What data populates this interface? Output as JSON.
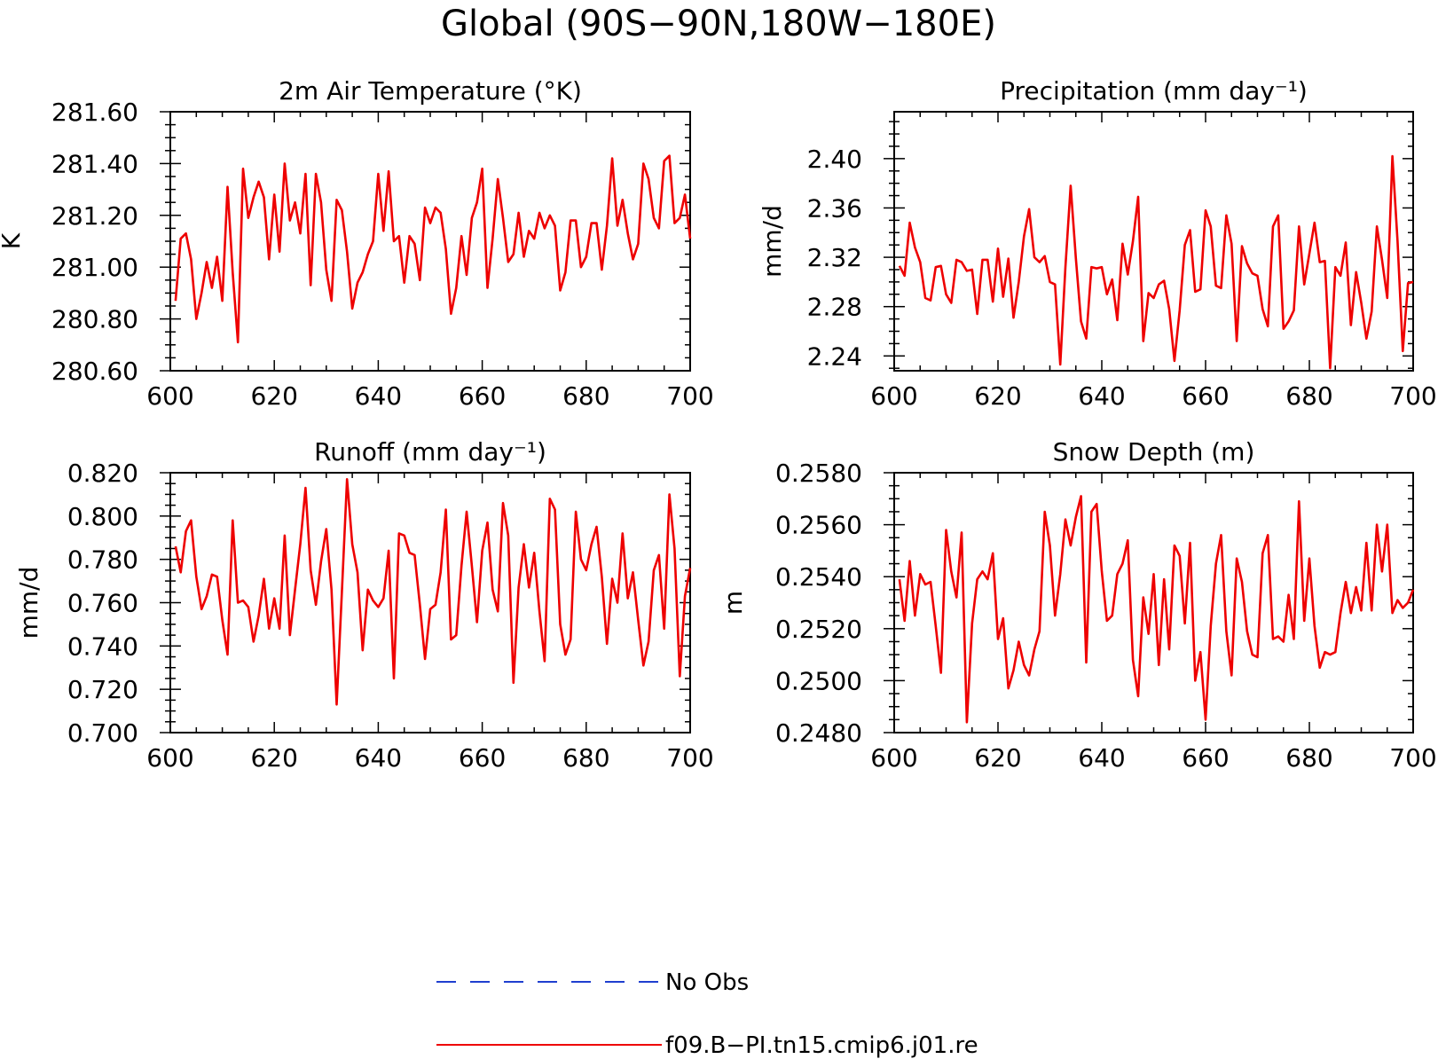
{
  "figure": {
    "title": "Global (90S−90N,180W−180E)"
  },
  "legend": {
    "entries": [
      {
        "label": "No Obs",
        "color": "#1f3fcf",
        "style": "dashed"
      },
      {
        "label": "f09.B−PI.tn15.cmip6.j01.re",
        "color": "#ee0000",
        "style": "solid"
      }
    ]
  },
  "chart_data": [
    {
      "type": "line",
      "title": "2m Air Temperature (°K)",
      "xlabel": "",
      "ylabel": "K",
      "xlim": [
        600,
        700
      ],
      "ylim": [
        280.6,
        281.6
      ],
      "xticks": [
        600,
        620,
        640,
        660,
        680,
        700
      ],
      "yticks": [
        280.6,
        280.8,
        281.0,
        281.2,
        281.4,
        281.6
      ],
      "ytick_labels": [
        "280.60",
        "280.80",
        "281.00",
        "281.20",
        "281.40",
        "281.60"
      ],
      "x_start": 601,
      "series": [
        {
          "color": "#ee0000",
          "values": [
            280.87,
            281.11,
            281.13,
            281.03,
            280.8,
            280.9,
            281.02,
            280.92,
            281.04,
            280.87,
            281.31,
            280.98,
            280.71,
            281.38,
            281.19,
            281.27,
            281.33,
            281.27,
            281.03,
            281.28,
            281.06,
            281.4,
            281.18,
            281.25,
            281.13,
            281.36,
            280.93,
            281.36,
            281.25,
            280.99,
            280.87,
            281.26,
            281.22,
            281.06,
            280.84,
            280.94,
            280.98,
            281.05,
            281.1,
            281.36,
            281.14,
            281.37,
            281.1,
            281.12,
            280.94,
            281.12,
            281.09,
            280.95,
            281.23,
            281.17,
            281.23,
            281.21,
            281.07,
            280.82,
            280.92,
            281.12,
            280.97,
            281.19,
            281.25,
            281.38,
            280.92,
            281.11,
            281.34,
            281.19,
            281.02,
            281.05,
            281.21,
            281.04,
            281.14,
            281.11,
            281.21,
            281.15,
            281.2,
            281.16,
            280.91,
            280.98,
            281.18,
            281.18,
            281.0,
            281.04,
            281.17,
            281.17,
            280.99,
            281.16,
            281.42,
            281.16,
            281.26,
            281.13,
            281.03,
            281.09,
            281.4,
            281.34,
            281.19,
            281.15,
            281.41,
            281.43,
            281.17,
            281.19,
            281.28,
            281.11
          ]
        }
      ]
    },
    {
      "type": "line",
      "title": "Precipitation (mm day⁻¹)",
      "xlabel": "",
      "ylabel": "mm/d",
      "xlim": [
        600,
        700
      ],
      "ylim": [
        2.228,
        2.438
      ],
      "xticks": [
        600,
        620,
        640,
        660,
        680,
        700
      ],
      "yticks": [
        2.24,
        2.28,
        2.32,
        2.36,
        2.4
      ],
      "ytick_labels": [
        "2.24",
        "2.28",
        "2.32",
        "2.36",
        "2.40"
      ],
      "x_start": 601,
      "series": [
        {
          "color": "#ee0000",
          "values": [
            2.313,
            2.305,
            2.348,
            2.328,
            2.316,
            2.287,
            2.285,
            2.312,
            2.313,
            2.29,
            2.283,
            2.318,
            2.316,
            2.309,
            2.31,
            2.274,
            2.318,
            2.318,
            2.284,
            2.327,
            2.288,
            2.319,
            2.271,
            2.3,
            2.337,
            2.359,
            2.32,
            2.316,
            2.321,
            2.3,
            2.298,
            2.233,
            2.312,
            2.378,
            2.319,
            2.268,
            2.254,
            2.312,
            2.311,
            2.312,
            2.29,
            2.302,
            2.269,
            2.331,
            2.306,
            2.333,
            2.369,
            2.252,
            2.291,
            2.287,
            2.298,
            2.301,
            2.278,
            2.236,
            2.277,
            2.33,
            2.342,
            2.292,
            2.294,
            2.358,
            2.345,
            2.297,
            2.295,
            2.354,
            2.331,
            2.252,
            2.329,
            2.315,
            2.307,
            2.305,
            2.278,
            2.264,
            2.345,
            2.354,
            2.262,
            2.268,
            2.277,
            2.345,
            2.298,
            2.323,
            2.348,
            2.316,
            2.317,
            2.23,
            2.312,
            2.305,
            2.332,
            2.265,
            2.308,
            2.283,
            2.254,
            2.276,
            2.345,
            2.318,
            2.287,
            2.402,
            2.333,
            2.244,
            2.299,
            2.3
          ]
        }
      ]
    },
    {
      "type": "line",
      "title": "Runoff (mm day⁻¹)",
      "xlabel": "",
      "ylabel": "mm/d",
      "xlim": [
        600,
        700
      ],
      "ylim": [
        0.7,
        0.82
      ],
      "xticks": [
        600,
        620,
        640,
        660,
        680,
        700
      ],
      "yticks": [
        0.7,
        0.72,
        0.74,
        0.76,
        0.78,
        0.8,
        0.82
      ],
      "ytick_labels": [
        "0.700",
        "0.720",
        "0.740",
        "0.760",
        "0.780",
        "0.800",
        "0.820"
      ],
      "x_start": 601,
      "series": [
        {
          "color": "#ee0000",
          "values": [
            0.786,
            0.774,
            0.793,
            0.798,
            0.772,
            0.757,
            0.763,
            0.773,
            0.772,
            0.752,
            0.736,
            0.798,
            0.76,
            0.761,
            0.758,
            0.742,
            0.754,
            0.771,
            0.748,
            0.762,
            0.748,
            0.791,
            0.745,
            0.766,
            0.787,
            0.813,
            0.775,
            0.759,
            0.779,
            0.794,
            0.766,
            0.713,
            0.765,
            0.817,
            0.787,
            0.774,
            0.738,
            0.766,
            0.761,
            0.758,
            0.762,
            0.784,
            0.725,
            0.792,
            0.791,
            0.783,
            0.782,
            0.759,
            0.734,
            0.757,
            0.759,
            0.774,
            0.803,
            0.743,
            0.745,
            0.777,
            0.802,
            0.777,
            0.751,
            0.784,
            0.797,
            0.766,
            0.756,
            0.806,
            0.791,
            0.723,
            0.767,
            0.787,
            0.767,
            0.783,
            0.756,
            0.733,
            0.808,
            0.803,
            0.75,
            0.736,
            0.743,
            0.802,
            0.78,
            0.775,
            0.787,
            0.795,
            0.772,
            0.741,
            0.771,
            0.76,
            0.792,
            0.762,
            0.774,
            0.752,
            0.731,
            0.742,
            0.775,
            0.782,
            0.748,
            0.81,
            0.785,
            0.726,
            0.763,
            0.776
          ]
        }
      ]
    },
    {
      "type": "line",
      "title": "Snow Depth (m)",
      "xlabel": "",
      "ylabel": "m",
      "xlim": [
        600,
        700
      ],
      "ylim": [
        0.248,
        0.258
      ],
      "xticks": [
        600,
        620,
        640,
        660,
        680,
        700
      ],
      "yticks": [
        0.248,
        0.25,
        0.252,
        0.254,
        0.256,
        0.258
      ],
      "ytick_labels": [
        "0.2480",
        "0.2500",
        "0.2520",
        "0.2540",
        "0.2560",
        "0.2580"
      ],
      "x_start": 601,
      "series": [
        {
          "color": "#ee0000",
          "values": [
            0.2539,
            0.2523,
            0.2546,
            0.2525,
            0.2541,
            0.2537,
            0.2538,
            0.2521,
            0.2503,
            0.2558,
            0.2542,
            0.2532,
            0.2557,
            0.2484,
            0.2522,
            0.2539,
            0.2542,
            0.2539,
            0.2549,
            0.2516,
            0.2524,
            0.2497,
            0.2504,
            0.2515,
            0.2506,
            0.2502,
            0.2512,
            0.2519,
            0.2565,
            0.2552,
            0.2525,
            0.2541,
            0.2562,
            0.2552,
            0.2563,
            0.2571,
            0.2507,
            0.2565,
            0.2568,
            0.2542,
            0.2523,
            0.2525,
            0.2541,
            0.2545,
            0.2554,
            0.2508,
            0.2494,
            0.2532,
            0.2518,
            0.2541,
            0.2506,
            0.2539,
            0.2512,
            0.2552,
            0.2548,
            0.2522,
            0.2553,
            0.25,
            0.2511,
            0.2485,
            0.2521,
            0.2545,
            0.2556,
            0.2519,
            0.2502,
            0.2547,
            0.2538,
            0.2519,
            0.251,
            0.2509,
            0.2549,
            0.2556,
            0.2516,
            0.2517,
            0.2515,
            0.2533,
            0.2516,
            0.2569,
            0.2523,
            0.2547,
            0.2521,
            0.2505,
            0.2511,
            0.251,
            0.2511,
            0.2526,
            0.2538,
            0.2526,
            0.2536,
            0.2527,
            0.2553,
            0.2527,
            0.256,
            0.2542,
            0.256,
            0.2526,
            0.2531,
            0.2528,
            0.253,
            0.2535
          ]
        }
      ]
    }
  ]
}
